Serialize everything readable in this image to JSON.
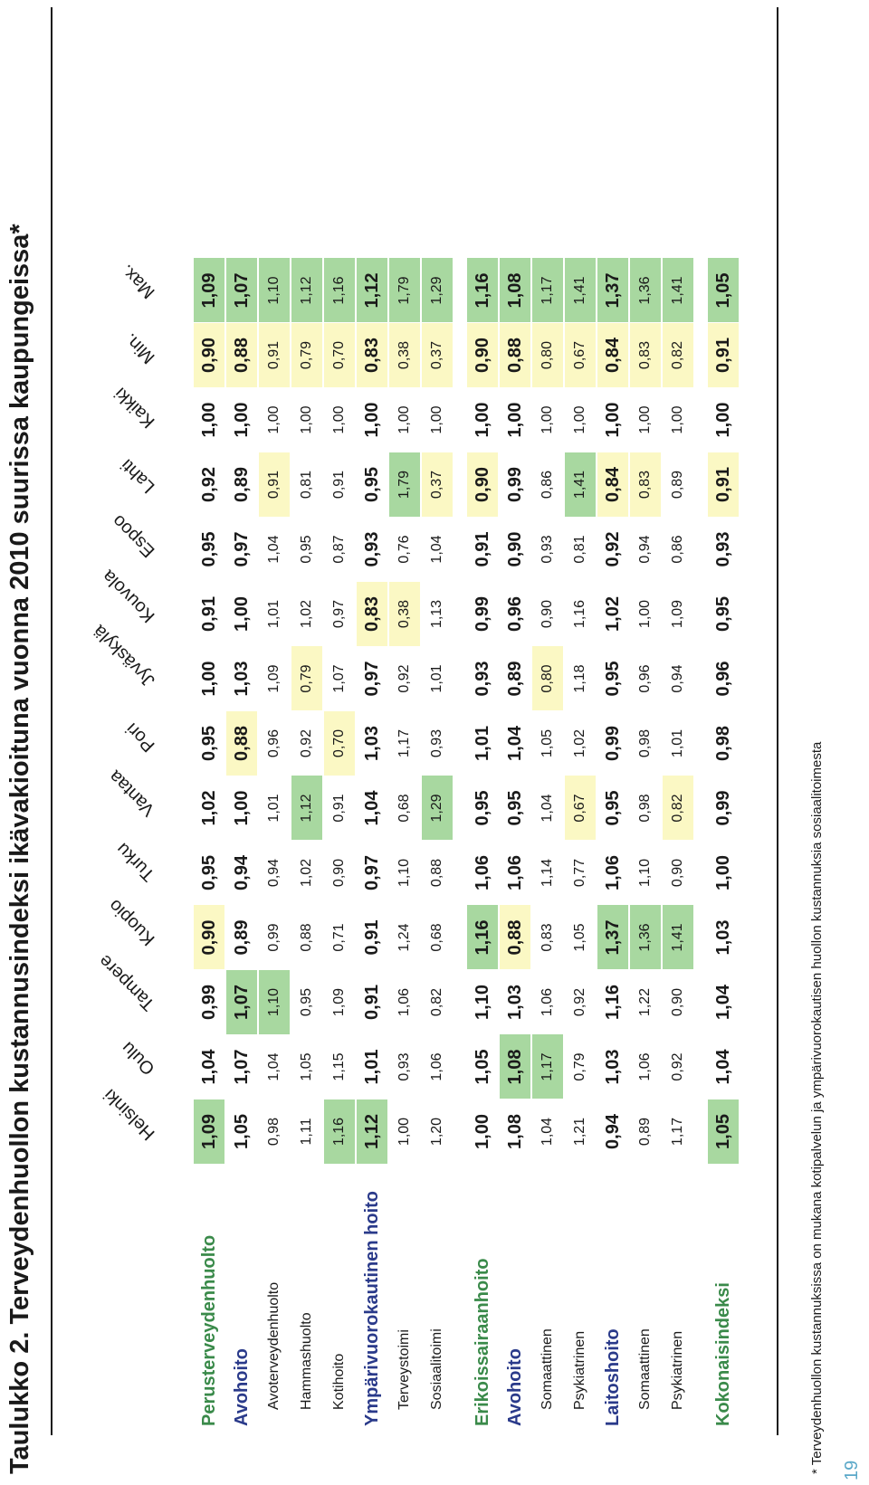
{
  "title": "Taulukko 2.  Terveydenhuollon kustannusindeksi ikävakioituna vuonna 2010 suurissa kaupungeissa*",
  "columns": [
    "Helsinki",
    "Oulu",
    "Tampere",
    "Kuopio",
    "Turku",
    "Vantaa",
    "Pori",
    "Jyväskylä",
    "Kouvola",
    "Espoo",
    "Lahti",
    "Kaikki",
    "Min.",
    "Max."
  ],
  "rows": [
    {
      "label": "Perusterveydenhuolto",
      "level": "green",
      "bold": true,
      "values": [
        "1,09",
        "1,04",
        "0,99",
        "0,90",
        "0,95",
        "1,02",
        "0,95",
        "1,00",
        "0,91",
        "0,95",
        "0,92",
        "1,00",
        "0,90",
        "1,09"
      ],
      "highlights": [
        "green",
        "",
        "",
        "yellow",
        "",
        "",
        "",
        "",
        "",
        "",
        "",
        "",
        "",
        ""
      ]
    },
    {
      "label": "Avohoito",
      "level": "blue",
      "bold": true,
      "values": [
        "1,05",
        "1,07",
        "1,07",
        "0,89",
        "0,94",
        "1,00",
        "0,88",
        "1,03",
        "1,00",
        "0,97",
        "0,89",
        "1,00",
        "0,88",
        "1,07"
      ],
      "highlights": [
        "",
        "",
        "green",
        "",
        "",
        "",
        "yellow",
        "",
        "",
        "",
        "",
        "",
        "",
        ""
      ]
    },
    {
      "label": "Avoterveydenhuolto",
      "level": "normal",
      "bold": false,
      "values": [
        "0,98",
        "1,04",
        "1,10",
        "0,99",
        "0,94",
        "1,01",
        "0,96",
        "1,09",
        "1,01",
        "1,04",
        "0,91",
        "1,00",
        "0,91",
        "1,10"
      ],
      "highlights": [
        "",
        "",
        "green",
        "",
        "",
        "",
        "",
        "",
        "",
        "",
        "yellow",
        "",
        "",
        ""
      ]
    },
    {
      "label": "Hammashuolto",
      "level": "normal",
      "bold": false,
      "values": [
        "1,11",
        "1,05",
        "0,95",
        "0,88",
        "1,02",
        "1,12",
        "0,92",
        "0,79",
        "1,02",
        "0,95",
        "0,81",
        "1,00",
        "0,79",
        "1,12"
      ],
      "highlights": [
        "",
        "",
        "",
        "",
        "",
        "green",
        "",
        "yellow",
        "",
        "",
        "",
        "",
        "",
        ""
      ]
    },
    {
      "label": "Kotihoito",
      "level": "normal",
      "bold": false,
      "values": [
        "1,16",
        "1,15",
        "1,09",
        "0,71",
        "0,90",
        "0,91",
        "0,70",
        "1,07",
        "0,97",
        "0,87",
        "0,91",
        "1,00",
        "0,70",
        "1,16"
      ],
      "highlights": [
        "green",
        "",
        "",
        "",
        "",
        "",
        "yellow",
        "",
        "",
        "",
        "",
        "",
        "",
        ""
      ]
    },
    {
      "label": "Ympärivuorokautinen hoito",
      "level": "blue",
      "bold": true,
      "values": [
        "1,12",
        "1,01",
        "0,91",
        "0,91",
        "0,97",
        "1,04",
        "1,03",
        "0,97",
        "0,83",
        "0,93",
        "0,95",
        "1,00",
        "0,83",
        "1,12"
      ],
      "highlights": [
        "green",
        "",
        "",
        "",
        "",
        "",
        "",
        "",
        "yellow",
        "",
        "",
        "",
        "",
        ""
      ]
    },
    {
      "label": "Terveystoimi",
      "level": "normal",
      "bold": false,
      "values": [
        "1,00",
        "0,93",
        "1,06",
        "1,24",
        "1,10",
        "0,68",
        "1,17",
        "0,92",
        "0,38",
        "0,76",
        "1,79",
        "1,00",
        "0,38",
        "1,79"
      ],
      "highlights": [
        "",
        "",
        "",
        "",
        "",
        "",
        "",
        "",
        "yellow",
        "",
        "green",
        "",
        "",
        ""
      ]
    },
    {
      "label": "Sosiaalitoimi",
      "level": "normal",
      "bold": false,
      "values": [
        "1,20",
        "1,06",
        "0,82",
        "0,68",
        "0,88",
        "1,29",
        "0,93",
        "1,01",
        "1,13",
        "1,04",
        "0,37",
        "1,00",
        "0,37",
        "1,29"
      ],
      "highlights": [
        "",
        "",
        "",
        "",
        "",
        "green",
        "",
        "",
        "",
        "",
        "yellow",
        "",
        "",
        ""
      ]
    },
    {
      "label": "Erikoissairaanhoito",
      "level": "green",
      "bold": true,
      "gap_before": true,
      "values": [
        "1,00",
        "1,05",
        "1,10",
        "1,16",
        "1,06",
        "0,95",
        "1,01",
        "0,93",
        "0,99",
        "0,91",
        "0,90",
        "1,00",
        "0,90",
        "1,16"
      ],
      "highlights": [
        "",
        "",
        "",
        "green",
        "",
        "",
        "",
        "",
        "",
        "",
        "yellow",
        "",
        "",
        ""
      ]
    },
    {
      "label": "Avohoito",
      "level": "blue",
      "bold": true,
      "values": [
        "1,08",
        "1,08",
        "1,03",
        "0,88",
        "1,06",
        "0,95",
        "1,04",
        "0,89",
        "0,96",
        "0,90",
        "0,99",
        "1,00",
        "0,88",
        "1,08"
      ],
      "highlights": [
        "",
        "green",
        "",
        "yellow",
        "",
        "",
        "",
        "",
        "",
        "",
        "",
        "",
        "",
        ""
      ]
    },
    {
      "label": "Somaattinen",
      "level": "normal",
      "bold": false,
      "values": [
        "1,04",
        "1,17",
        "1,06",
        "0,83",
        "1,14",
        "1,04",
        "1,05",
        "0,80",
        "0,90",
        "0,93",
        "0,86",
        "1,00",
        "0,80",
        "1,17"
      ],
      "highlights": [
        "",
        "green",
        "",
        "",
        "",
        "",
        "",
        "yellow",
        "",
        "",
        "",
        "",
        "",
        ""
      ]
    },
    {
      "label": "Psykiatrinen",
      "level": "normal",
      "bold": false,
      "values": [
        "1,21",
        "0,79",
        "0,92",
        "1,05",
        "0,77",
        "0,67",
        "1,02",
        "1,18",
        "1,16",
        "0,81",
        "1,41",
        "1,00",
        "0,67",
        "1,41"
      ],
      "highlights": [
        "",
        "",
        "",
        "",
        "",
        "yellow",
        "",
        "",
        "",
        "",
        "green",
        "",
        "",
        ""
      ]
    },
    {
      "label": "Laitoshoito",
      "level": "blue",
      "bold": true,
      "values": [
        "0,94",
        "1,03",
        "1,16",
        "1,37",
        "1,06",
        "0,95",
        "0,99",
        "0,95",
        "1,02",
        "0,92",
        "0,84",
        "1,00",
        "0,84",
        "1,37"
      ],
      "highlights": [
        "",
        "",
        "",
        "green",
        "",
        "",
        "",
        "",
        "",
        "",
        "yellow",
        "",
        "",
        ""
      ]
    },
    {
      "label": "Somaattinen",
      "level": "normal",
      "bold": false,
      "values": [
        "0,89",
        "1,06",
        "1,22",
        "1,36",
        "1,10",
        "0,98",
        "0,98",
        "0,96",
        "1,00",
        "0,94",
        "0,83",
        "1,00",
        "0,83",
        "1,36"
      ],
      "highlights": [
        "",
        "",
        "",
        "green",
        "",
        "",
        "",
        "",
        "",
        "",
        "yellow",
        "",
        "",
        ""
      ]
    },
    {
      "label": "Psykiatrinen",
      "level": "normal",
      "bold": false,
      "values": [
        "1,17",
        "0,92",
        "0,90",
        "1,41",
        "0,90",
        "0,82",
        "1,01",
        "0,94",
        "1,09",
        "0,86",
        "0,89",
        "1,00",
        "0,82",
        "1,41"
      ],
      "highlights": [
        "",
        "",
        "",
        "green",
        "",
        "yellow",
        "",
        "",
        "",
        "",
        "",
        "",
        "",
        ""
      ]
    },
    {
      "label": "Kokonaisindeksi",
      "level": "green",
      "bold": true,
      "gap_before": true,
      "values": [
        "1,05",
        "1,04",
        "1,04",
        "1,03",
        "1,00",
        "0,99",
        "0,98",
        "0,96",
        "0,95",
        "0,93",
        "0,91",
        "1,00",
        "0,91",
        "1,05"
      ],
      "highlights": [
        "green",
        "",
        "",
        "",
        "",
        "",
        "",
        "",
        "",
        "",
        "yellow",
        "",
        "",
        ""
      ]
    }
  ],
  "footnote": "* Terveydenhuollon kustannuksissa on mukana kotipalvelun ja ympärivuorokautisen huollon kustannuksia sosiaalitoimesta",
  "page_number": "19",
  "colors": {
    "green": "#a8d8a0",
    "yellow": "#fbf8c4",
    "label_green": "#3a8a4a",
    "label_blue": "#2a3a8a",
    "page_number": "#5aa8c8"
  }
}
